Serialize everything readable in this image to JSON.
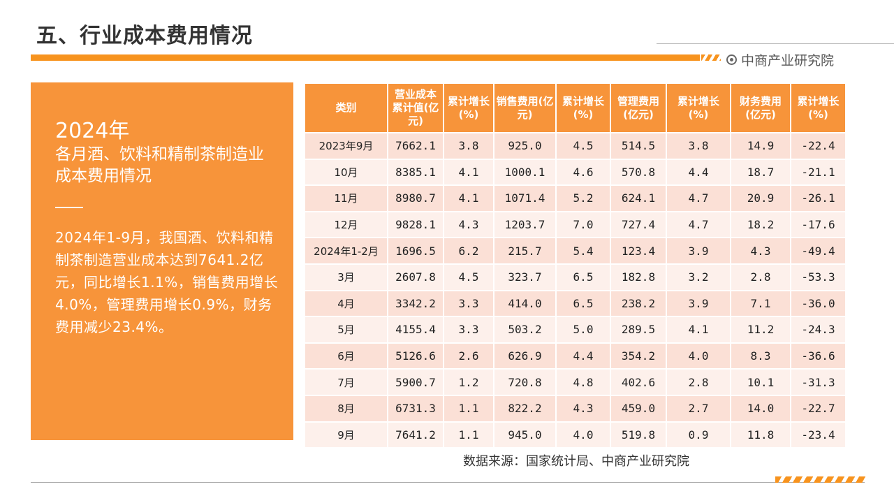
{
  "header": {
    "title": "五、行业成本费用情况",
    "brand": "中商产业研究院"
  },
  "panel": {
    "year": "2024年",
    "heading": "各月酒、饮料和精制茶制造业成本费用情况",
    "body": "2024年1-9月，我国酒、饮料和精制茶制造营业成本达到7641.2亿元，同比增长1.1%，销售费用增长4.0%，管理费用增长0.9%，财务费用减少23.4%。"
  },
  "table": {
    "headers": [
      "类别",
      "营业成本累计值(亿元)",
      "累计增长(%)",
      "销售费用(亿元)",
      "累计增长(%)",
      "管理费用(亿元)",
      "累计增长(%)",
      "财务费用(亿元)",
      "累计增长(%)"
    ],
    "rows": [
      [
        "2023年9月",
        "7662.1",
        "3.8",
        "925.0",
        "4.5",
        "514.5",
        "3.8",
        "14.9",
        "-22.4"
      ],
      [
        "10月",
        "8385.1",
        "4.1",
        "1000.1",
        "4.6",
        "570.8",
        "4.4",
        "18.7",
        "-21.1"
      ],
      [
        "11月",
        "8980.7",
        "4.1",
        "1071.4",
        "5.2",
        "624.1",
        "4.7",
        "20.9",
        "-26.1"
      ],
      [
        "12月",
        "9828.1",
        "4.3",
        "1203.7",
        "7.0",
        "727.4",
        "4.7",
        "18.2",
        "-17.6"
      ],
      [
        "2024年1-2月",
        "1696.5",
        "6.2",
        "215.7",
        "5.4",
        "123.4",
        "3.9",
        "4.3",
        "-49.4"
      ],
      [
        "3月",
        "2607.8",
        "4.5",
        "323.7",
        "6.5",
        "182.8",
        "3.2",
        "2.8",
        "-53.3"
      ],
      [
        "4月",
        "3342.2",
        "3.3",
        "414.0",
        "6.5",
        "238.2",
        "3.9",
        "7.1",
        "-36.0"
      ],
      [
        "5月",
        "4155.4",
        "3.3",
        "503.2",
        "5.0",
        "289.5",
        "4.1",
        "11.2",
        "-24.3"
      ],
      [
        "6月",
        "5126.6",
        "2.6",
        "626.9",
        "4.4",
        "354.2",
        "4.0",
        "8.3",
        "-36.6"
      ],
      [
        "7月",
        "5900.7",
        "1.2",
        "720.8",
        "4.8",
        "402.6",
        "2.8",
        "10.1",
        "-31.3"
      ],
      [
        "8月",
        "6731.3",
        "1.1",
        "822.2",
        "4.3",
        "459.0",
        "2.7",
        "14.0",
        "-22.7"
      ],
      [
        "9月",
        "7641.2",
        "1.1",
        "945.0",
        "4.0",
        "519.8",
        "0.9",
        "11.8",
        "-23.4"
      ]
    ]
  },
  "source": "数据来源：国家统计局、中商产业研究院"
}
